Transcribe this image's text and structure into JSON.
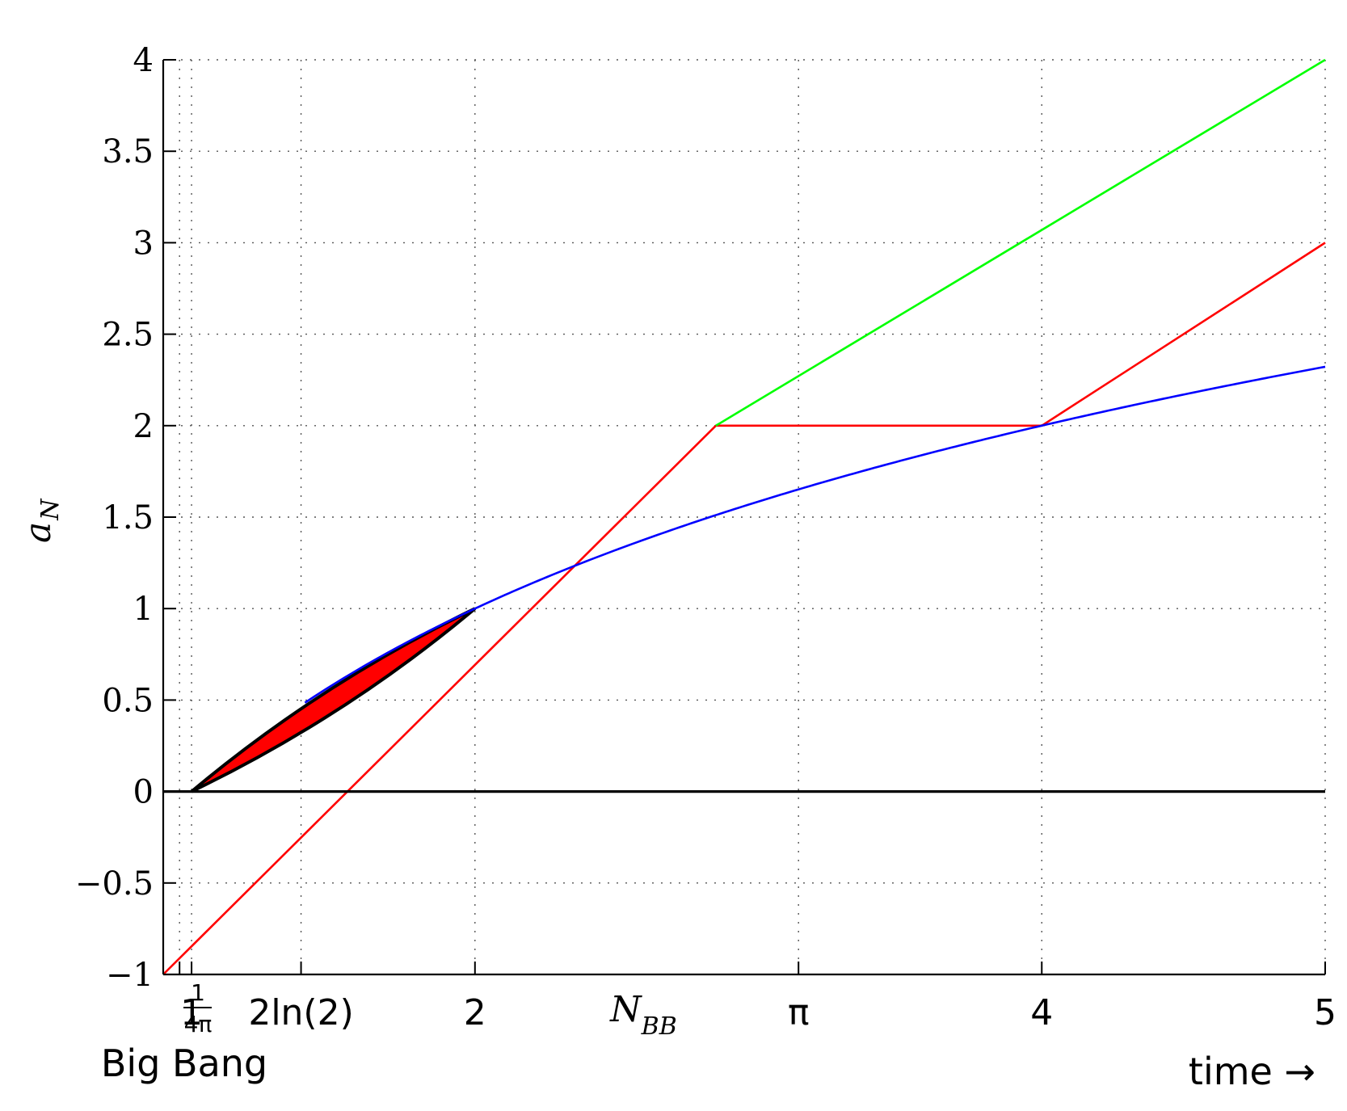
{
  "chart_data": {
    "type": "line",
    "xlim": [
      0.9,
      5
    ],
    "ylim": [
      -1,
      4
    ],
    "grid": true,
    "ylabel": "a",
    "ylabel_sub": "N",
    "yticks": [
      -1,
      -0.5,
      0,
      0.5,
      1,
      1.5,
      2,
      2.5,
      3,
      3.5,
      4
    ],
    "ytick_labels": [
      "−1",
      "−0.5",
      "0",
      "0.5",
      "1",
      "1.5",
      "2",
      "2.5",
      "3",
      "3.5",
      "4"
    ],
    "xticks": [
      {
        "value": 0.9576,
        "label": ""
      },
      {
        "value": 1,
        "label": "1"
      },
      {
        "value": 1.3863,
        "label": "2ln(2)"
      },
      {
        "value": 2,
        "label": "2"
      },
      {
        "value": 3.1416,
        "label": "π"
      },
      {
        "value": 4,
        "label": "4"
      },
      {
        "value": 5,
        "label": "5"
      }
    ],
    "fraction_tick": {
      "value": 0.9576,
      "numerator": "1",
      "denominator": "4π"
    },
    "nbb_label": {
      "value": 2.5,
      "main": "N",
      "sub": "BB"
    },
    "annotations": {
      "left": "Big Bang",
      "right": "time →"
    },
    "series": [
      {
        "color": "#ff0000",
        "points": [
          [
            0.9,
            -1
          ],
          [
            2.85,
            2
          ],
          [
            4,
            2
          ],
          [
            5,
            3
          ]
        ]
      },
      {
        "color": "#00ff00",
        "points": [
          [
            2.85,
            2
          ],
          [
            5,
            4
          ]
        ]
      },
      {
        "color": "#0000ff",
        "function": "log2",
        "x": [
          1.4,
          5
        ]
      },
      {
        "color": "#000000",
        "points": [
          [
            0.9,
            0
          ],
          [
            5,
            0
          ]
        ]
      }
    ],
    "lens": {
      "x": [
        1,
        2
      ],
      "y": [
        0,
        1
      ],
      "fill": "#ff0000",
      "stroke": "#000000"
    }
  }
}
